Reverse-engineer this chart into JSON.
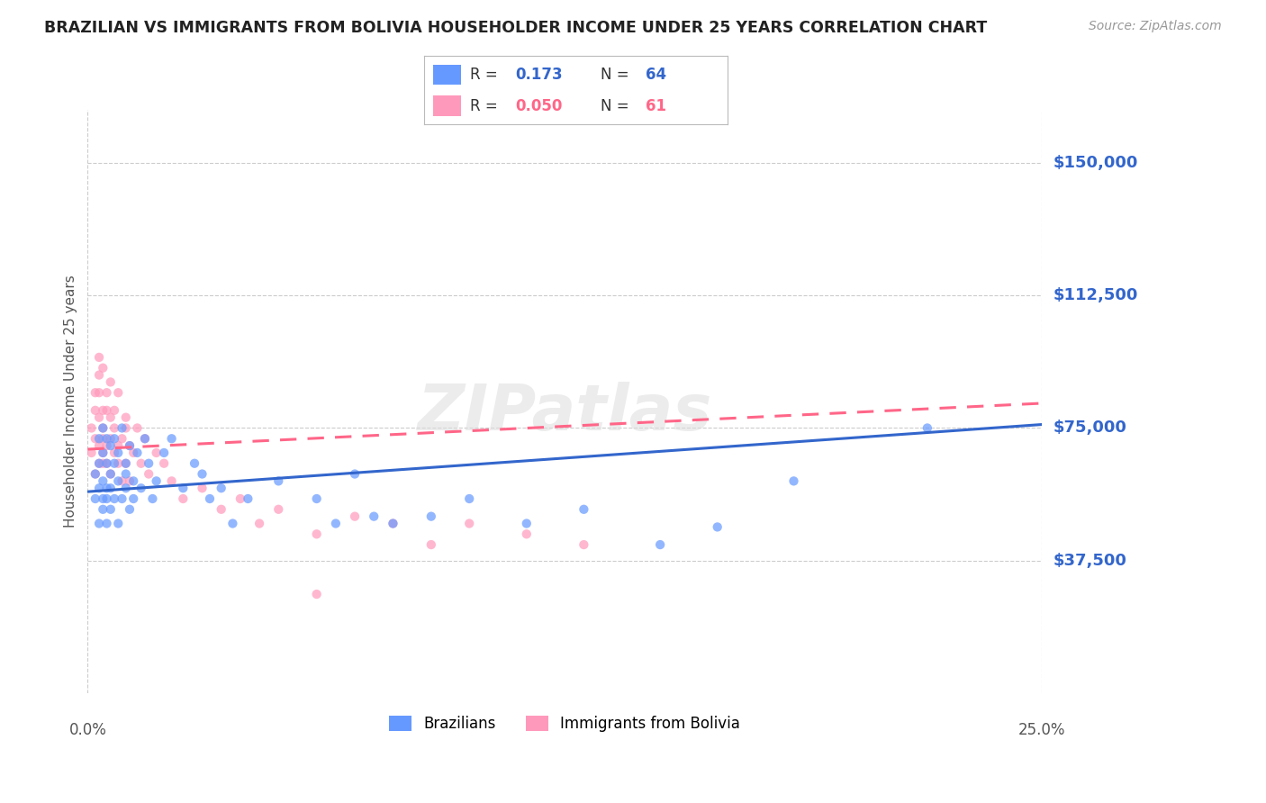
{
  "title": "BRAZILIAN VS IMMIGRANTS FROM BOLIVIA HOUSEHOLDER INCOME UNDER 25 YEARS CORRELATION CHART",
  "source": "Source: ZipAtlas.com",
  "ylabel": "Householder Income Under 25 years",
  "xlabel_ticks": [
    "0.0%",
    "25.0%"
  ],
  "yticks": [
    0,
    37500,
    75000,
    112500,
    150000
  ],
  "ytick_labels": [
    "",
    "$37,500",
    "$75,000",
    "$112,500",
    "$150,000"
  ],
  "xmin": 0.0,
  "xmax": 0.25,
  "ymin": 0,
  "ymax": 165000,
  "R_blue": 0.173,
  "N_blue": 64,
  "R_pink": 0.05,
  "N_pink": 61,
  "legend_labels": [
    "Brazilians",
    "Immigrants from Bolivia"
  ],
  "color_blue": "#6699FF",
  "color_pink": "#FF99BB",
  "color_blue_text": "#3366CC",
  "color_pink_text": "#FF6688",
  "watermark": "ZIPatlas",
  "background_color": "#FFFFFF",
  "grid_color": "#CCCCCC",
  "blue_line_y0": 57000,
  "blue_line_y1": 76000,
  "pink_line_y0": 69000,
  "pink_line_y1": 82000,
  "blue_scatter_x": [
    0.002,
    0.002,
    0.003,
    0.003,
    0.003,
    0.003,
    0.004,
    0.004,
    0.004,
    0.004,
    0.004,
    0.005,
    0.005,
    0.005,
    0.005,
    0.005,
    0.006,
    0.006,
    0.006,
    0.006,
    0.007,
    0.007,
    0.007,
    0.008,
    0.008,
    0.008,
    0.009,
    0.009,
    0.01,
    0.01,
    0.01,
    0.011,
    0.011,
    0.012,
    0.012,
    0.013,
    0.014,
    0.015,
    0.016,
    0.017,
    0.018,
    0.02,
    0.022,
    0.025,
    0.028,
    0.03,
    0.032,
    0.035,
    0.038,
    0.042,
    0.05,
    0.06,
    0.065,
    0.07,
    0.075,
    0.08,
    0.09,
    0.1,
    0.115,
    0.13,
    0.15,
    0.165,
    0.185,
    0.22
  ],
  "blue_scatter_y": [
    55000,
    62000,
    48000,
    58000,
    65000,
    72000,
    52000,
    60000,
    68000,
    75000,
    55000,
    58000,
    65000,
    48000,
    72000,
    55000,
    62000,
    70000,
    52000,
    58000,
    65000,
    55000,
    72000,
    60000,
    68000,
    48000,
    55000,
    75000,
    62000,
    58000,
    65000,
    52000,
    70000,
    60000,
    55000,
    68000,
    58000,
    72000,
    65000,
    55000,
    60000,
    68000,
    72000,
    58000,
    65000,
    62000,
    55000,
    58000,
    48000,
    55000,
    60000,
    55000,
    48000,
    62000,
    50000,
    48000,
    50000,
    55000,
    48000,
    52000,
    42000,
    47000,
    60000,
    75000
  ],
  "pink_scatter_x": [
    0.001,
    0.001,
    0.002,
    0.002,
    0.002,
    0.002,
    0.003,
    0.003,
    0.003,
    0.003,
    0.003,
    0.003,
    0.004,
    0.004,
    0.004,
    0.004,
    0.004,
    0.004,
    0.005,
    0.005,
    0.005,
    0.005,
    0.006,
    0.006,
    0.006,
    0.006,
    0.007,
    0.007,
    0.007,
    0.008,
    0.008,
    0.008,
    0.009,
    0.009,
    0.01,
    0.01,
    0.01,
    0.011,
    0.011,
    0.012,
    0.013,
    0.014,
    0.015,
    0.016,
    0.018,
    0.02,
    0.022,
    0.025,
    0.03,
    0.035,
    0.04,
    0.045,
    0.05,
    0.06,
    0.07,
    0.08,
    0.09,
    0.1,
    0.115,
    0.13,
    0.06
  ],
  "pink_scatter_y": [
    68000,
    75000,
    62000,
    80000,
    72000,
    85000,
    65000,
    78000,
    90000,
    95000,
    70000,
    85000,
    65000,
    80000,
    72000,
    92000,
    68000,
    75000,
    70000,
    80000,
    65000,
    85000,
    72000,
    78000,
    62000,
    88000,
    68000,
    75000,
    80000,
    70000,
    65000,
    85000,
    72000,
    60000,
    75000,
    65000,
    78000,
    70000,
    60000,
    68000,
    75000,
    65000,
    72000,
    62000,
    68000,
    65000,
    60000,
    55000,
    58000,
    52000,
    55000,
    48000,
    52000,
    45000,
    50000,
    48000,
    42000,
    48000,
    45000,
    42000,
    28000
  ]
}
